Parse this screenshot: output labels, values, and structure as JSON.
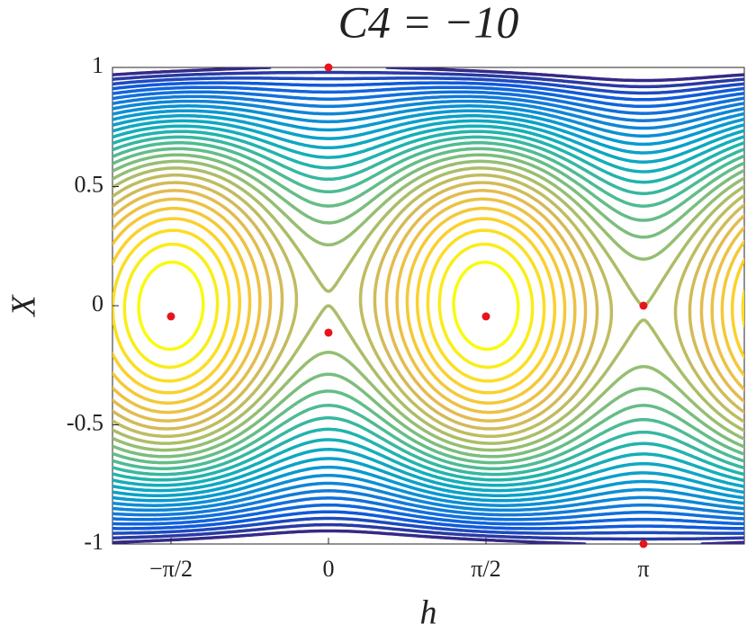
{
  "chart_data": {
    "type": "contour",
    "title": "C4 = −10",
    "xlabel": "h",
    "ylabel": "X",
    "xlim": [
      -2.154,
      4.147
    ],
    "ylim": [
      -1,
      1
    ],
    "xticks": [
      {
        "value": -1.5708,
        "label": "−π/2"
      },
      0,
      {
        "value": 1.5708,
        "label": "π/2"
      },
      {
        "value": 3.1416,
        "label": "π"
      }
    ],
    "yticks": [
      -1,
      -0.5,
      0,
      0.5,
      1
    ],
    "levels": [
      0.05,
      0.1,
      0.15,
      0.2,
      0.25,
      0.3,
      0.35,
      0.4,
      0.45,
      0.5,
      0.55,
      0.6,
      0.65,
      0.7,
      0.75,
      0.8,
      0.85,
      0.9,
      0.95,
      1.0,
      1.05,
      1.1,
      1.15,
      1.2,
      1.25,
      1.3,
      1.35,
      1.4,
      1.45
    ],
    "colormap": "parula",
    "points": {
      "color": "#e8141b",
      "x": [
        -1.5708,
        0,
        1.5708,
        3.1416,
        0,
        3.1416
      ],
      "y": [
        -0.045,
        -0.113,
        -0.045,
        0,
        1,
        -1
      ]
    }
  }
}
